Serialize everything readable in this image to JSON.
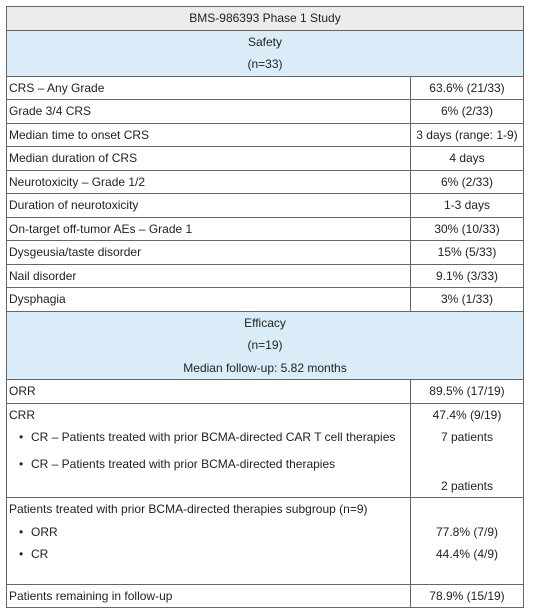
{
  "title": "BMS-986393 Phase 1 Study",
  "safety": {
    "heading": "Safety",
    "n": "(n=33)",
    "rows": [
      {
        "label": "CRS – Any Grade",
        "value": "63.6% (21/33)"
      },
      {
        "label": "Grade 3/4 CRS",
        "value": "6% (2/33)"
      },
      {
        "label": "Median time to onset CRS",
        "value": "3 days (range: 1-9)"
      },
      {
        "label": "Median duration of CRS",
        "value": "4 days"
      },
      {
        "label": "Neurotoxicity – Grade 1/2",
        "value": "6% (2/33)"
      },
      {
        "label": "Duration of neurotoxicity",
        "value": "1-3 days"
      },
      {
        "label": "On-target off-tumor AEs – Grade 1",
        "value": "30% (10/33)"
      },
      {
        "label": "Dysgeusia/taste disorder",
        "value": "15% (5/33)"
      },
      {
        "label": "Nail disorder",
        "value": "9.1% (3/33)"
      },
      {
        "label": "Dysphagia",
        "value": "3% (1/33)"
      }
    ]
  },
  "efficacy": {
    "heading": "Efficacy",
    "n": "(n=19)",
    "followup": "Median follow-up: 5.82 months",
    "orr": {
      "label": "ORR",
      "value": "89.5% (17/19)"
    },
    "cr": {
      "label": "CRR",
      "value": "47.4% (9/19)",
      "bullets": [
        "CR – Patients treated with prior BCMA-directed CAR T cell therapies",
        "CR – Patients treated with prior BCMA-directed therapies"
      ],
      "bullet_values": [
        "7 patients",
        "2 patients"
      ]
    },
    "subgroup": {
      "label": "Patients treated with prior BCMA-directed therapies subgroup (n=9)",
      "bullets": [
        "ORR",
        "CR"
      ],
      "values": [
        "77.8% (7/9)",
        "44.4% (4/9)"
      ]
    },
    "remaining": {
      "label": "Patients remaining in follow-up",
      "value": "78.9% (15/19)"
    }
  }
}
